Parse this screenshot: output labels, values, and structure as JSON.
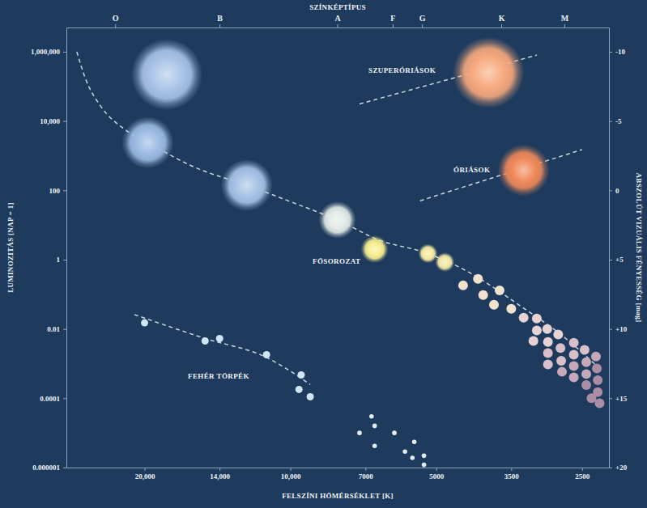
{
  "chart_data": {
    "type": "scatter",
    "x2label": "SZÍNKÉPTÍPUS",
    "xlabel": "FELSZÍNI HŐMÉRSÉKLET [K]",
    "ylabel": "LUMINOZITÁS [NAP = 1]",
    "y2label": "ABSZOLÚT VIZUÁLIS FÉNYESSÉG [mag]",
    "log": true,
    "grid": false,
    "xlim": [
      29000,
      2200
    ],
    "xticks": [
      {
        "value": 20000,
        "label": "20,000"
      },
      {
        "value": 14000,
        "label": "14,000"
      },
      {
        "value": 10000,
        "label": "10,000"
      },
      7000,
      5000,
      3500,
      2500
    ],
    "x2ticks": [
      {
        "value": 23000,
        "label": "O"
      },
      {
        "value": 14000,
        "label": "B"
      },
      {
        "value": 8000,
        "label": "A"
      },
      {
        "value": 6150,
        "label": "F"
      },
      {
        "value": 5350,
        "label": "G"
      },
      {
        "value": 3670,
        "label": "K"
      },
      {
        "value": 2720,
        "label": "M"
      }
    ],
    "ylim": [
      1e-06,
      5000000
    ],
    "yticks": [
      {
        "value": 1000000,
        "label": "1,000,000"
      },
      {
        "value": 10000,
        "label": "10,000"
      },
      100,
      1,
      0.01,
      0.0001,
      1e-06
    ],
    "y2lim": [
      20,
      -11.75
    ],
    "y2ticks": [
      -10,
      -5,
      0,
      {
        "value": 5,
        "label": "+5"
      },
      {
        "value": 10,
        "label": "+10"
      },
      {
        "value": 15,
        "label": "+15"
      },
      {
        "value": 20,
        "label": "+20"
      }
    ],
    "series": [
      {
        "name": "SZUPERÓRIÁSOK",
        "type": "line",
        "line_style": "dashed",
        "color": "#e8eef5",
        "x": [
          7200,
          3100
        ],
        "values": [
          31000,
          800000
        ]
      },
      {
        "name": "ÓRIÁSOK",
        "type": "line",
        "line_style": "dashed",
        "color": "#e8eef5",
        "x": [
          5400,
          2500
        ],
        "values": [
          50,
          1500
        ]
      },
      {
        "name": "FŐSOROZAT",
        "type": "line",
        "line_style": "dashed",
        "color": "#e8eef5",
        "x": [
          27600,
          26500,
          24600,
          22000,
          19700,
          15800,
          12300,
          9600,
          8000,
          6600,
          5200,
          4300,
          3400,
          2700,
          2300
        ],
        "values": [
          1000000,
          170000,
          26000,
          5800,
          2400,
          470,
          140,
          38,
          14,
          3.8,
          1.5,
          0.45,
          0.053,
          0.0053,
          0.00072
        ]
      },
      {
        "name": "FEHÉR TÖRPÉK",
        "type": "line",
        "line_style": "dashed",
        "color": "#e8eef5",
        "x": [
          21000,
          15000,
          11200,
          9100
        ],
        "values": [
          0.026,
          0.0053,
          0.0015,
          0.00025
        ]
      },
      {
        "type": "scatter",
        "marker": "glow-huge",
        "x": [
          18000,
          3900
        ],
        "values": [
          220000,
          250000
        ],
        "colors": [
          "#aac4e8",
          "#f7a97e"
        ]
      },
      {
        "type": "scatter",
        "marker": "glow-large",
        "x": [
          19700,
          12300,
          3300
        ],
        "values": [
          2400,
          140,
          380
        ],
        "colors": [
          "#9dbbe3",
          "#a8c3e5",
          "#f0895a"
        ]
      },
      {
        "type": "scatter",
        "marker": "glow-medium",
        "x": [
          8000
        ],
        "values": [
          14
        ],
        "colors": [
          "#e4ebe6"
        ]
      },
      {
        "type": "scatter",
        "marker": "glow-small",
        "x": [
          6700
        ],
        "values": [
          2
        ],
        "colors": [
          "#f8ee90"
        ]
      },
      {
        "type": "scatter",
        "marker": "glow-tiny",
        "x": [
          5200,
          4800
        ],
        "values": [
          1.5,
          0.85
        ],
        "colors": [
          "#f5eba3",
          "#f3e8a8"
        ]
      },
      {
        "type": "scatter",
        "marker": "dot",
        "x": [
          4400,
          4100,
          4000,
          3800,
          3700,
          3500,
          3300,
          3100,
          3100,
          2950,
          3150,
          2940,
          2800,
          2770,
          2600,
          2940,
          2760,
          2600,
          2470,
          2940,
          2750,
          2600,
          2450,
          2340,
          2600,
          2450,
          2330,
          2450,
          2320,
          2320,
          2390,
          2300
        ],
        "values": [
          0.18,
          0.28,
          0.095,
          0.05,
          0.13,
          0.038,
          0.021,
          0.02,
          0.009,
          0.01,
          0.0045,
          0.0042,
          0.0069,
          0.0028,
          0.004,
          0.002,
          0.0012,
          0.0018,
          0.0025,
          0.00095,
          0.00058,
          0.00085,
          0.0011,
          0.0016,
          0.0004,
          0.0005,
          0.00072,
          0.00024,
          0.00033,
          0.00015,
          0.0001,
          7.2e-05
        ],
        "colors": [
          "#f1e2cf",
          "#f1e2cf",
          "#f1e2cf",
          "#f1e2cf",
          "#f1e2cf",
          "#f1e2cf",
          "#e7d2d4",
          "#e7d2d4",
          "#e7d2d4",
          "#e7d2d4",
          "#e7d2d4",
          "#e7d2d4",
          "#e7d2d4",
          "#d8bfca",
          "#d8bfca",
          "#d8bfca",
          "#d8bfca",
          "#d8bfca",
          "#d8bfca",
          "#d8bfca",
          "#c6a8bb",
          "#c6a8bb",
          "#c6a8bb",
          "#c6a8bb",
          "#c6a8bb",
          "#c6a8bb",
          "#ab8ea6",
          "#ab8ea6",
          "#ab8ea6",
          "#ab8ea6",
          "#ab8ea6",
          "#ab8ea6"
        ]
      },
      {
        "type": "scatter",
        "marker": "dot-small",
        "x": [
          20000,
          15000,
          14000,
          11200,
          9500,
          9600,
          9100
        ],
        "values": [
          0.015,
          0.0045,
          0.0053,
          0.0018,
          0.00047,
          0.00018,
          0.00011
        ],
        "colors": [
          "#cfe5f4",
          "#cfe5f4",
          "#cfe5f4",
          "#cfe5f4",
          "#cfe5f4",
          "#cfe5f4",
          "#cfe5f4"
        ]
      },
      {
        "type": "scatter",
        "marker": "dot-tiny",
        "x": [
          7200,
          6800,
          6700,
          6700,
          6100,
          5800,
          5600,
          5550,
          5300,
          5300
        ],
        "values": [
          1e-05,
          3e-05,
          1.6e-05,
          4.2e-06,
          1e-05,
          2.9e-06,
          1.9e-06,
          5.5e-06,
          2.2e-06,
          1.2e-06
        ],
        "colors": [
          "#e3eaf1",
          "#e3eaf1",
          "#e3eaf1",
          "#e3eaf1",
          "#e3eaf1",
          "#e3eaf1",
          "#e3eaf1",
          "#e3eaf1",
          "#e3eaf1",
          "#e3eaf1"
        ]
      }
    ]
  }
}
